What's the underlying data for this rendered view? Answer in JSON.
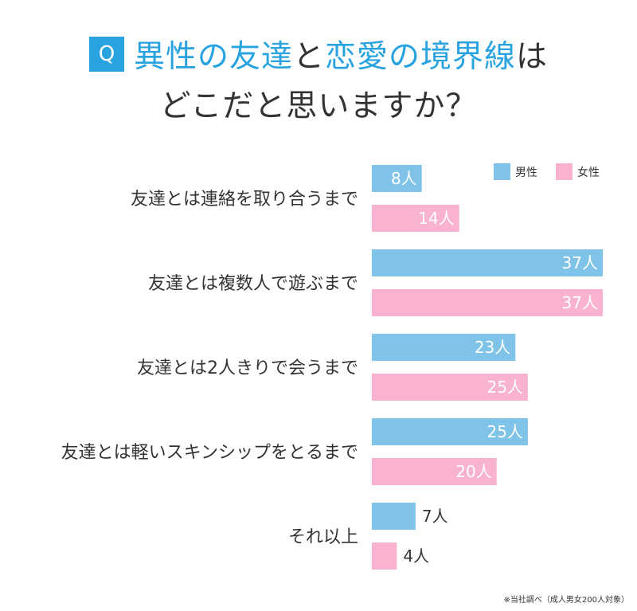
{
  "title": {
    "badge": "Q",
    "line1_blue_a": "異性の友達",
    "line1_dark_a": "と",
    "line1_blue_b": "恋愛の境界線",
    "line1_dark_b": "は",
    "line2": "どこだと思いますか？"
  },
  "footnote": "※当社調べ（成人男女200人対象）",
  "colors": {
    "male": "#7fc4e8",
    "female": "#f9b3d1",
    "accent": "#29a3e0"
  },
  "chart_data": {
    "type": "bar",
    "orientation": "horizontal",
    "unit": "人",
    "categories": [
      "友達とは連絡を取り合うまで",
      "友達とは複数人で遊ぶまで",
      "友達とは2人きりで会うまで",
      "友達とは軽いスキンシップをとるまで",
      "それ以上"
    ],
    "series": [
      {
        "name": "男性",
        "values": [
          8,
          37,
          23,
          25,
          7
        ]
      },
      {
        "name": "女性",
        "values": [
          14,
          37,
          25,
          20,
          4
        ]
      }
    ],
    "xlim": [
      0,
      37
    ],
    "legend": "top-right",
    "grid": false
  }
}
